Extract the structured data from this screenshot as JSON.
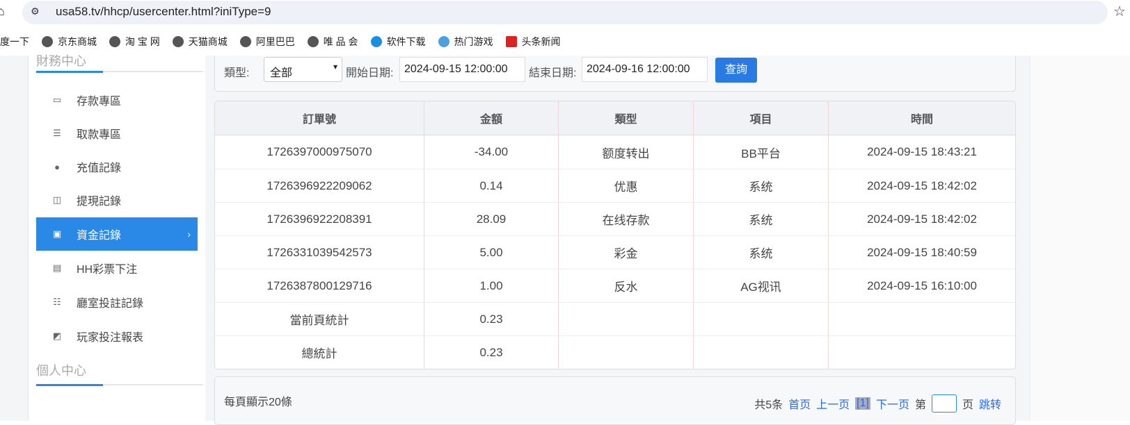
{
  "browser": {
    "url": "usa58.tv/hhcp/usercenter.html?iniType=9",
    "bookmarks": [
      "百度一下",
      "京东商城",
      "淘 宝 网",
      "天猫商城",
      "阿里巴巴",
      "唯 品 会",
      "软件下载",
      "热门游戏",
      "头条新闻"
    ]
  },
  "sidebar": {
    "section1": "財務中心",
    "section2": "個人中心",
    "active_color": "#2a88e6",
    "items": [
      {
        "label": "存款專區",
        "icon": "card-icon"
      },
      {
        "label": "取款專區",
        "icon": "hand-money-icon"
      },
      {
        "label": "充值記錄",
        "icon": "money-bag-icon"
      },
      {
        "label": "提現記錄",
        "icon": "wallet-icon"
      },
      {
        "label": "資金記錄",
        "icon": "cash-icon",
        "active": true
      },
      {
        "label": "HH彩票下注",
        "icon": "list-icon"
      },
      {
        "label": "廳室投註記錄",
        "icon": "bullet-list-icon"
      },
      {
        "label": "玩家投注報表",
        "icon": "chart-icon"
      }
    ]
  },
  "filter": {
    "type_label": "類型:",
    "type_value": "全部",
    "start_label": "開始日期:",
    "start_value": "2024-09-15 12:00:00",
    "end_label": "結束日期:",
    "end_value": "2024-09-16 12:00:00",
    "query_button": "查詢"
  },
  "table": {
    "headers": [
      "訂單號",
      "金額",
      "類型",
      "項目",
      "時間"
    ],
    "rows": [
      [
        "1726397000975070",
        "-34.00",
        "额度转出",
        "BB平台",
        "2024-09-15 18:43:21"
      ],
      [
        "1726396922209062",
        "0.14",
        "优惠",
        "系统",
        "2024-09-15 18:42:02"
      ],
      [
        "1726396922208391",
        "28.09",
        "在线存款",
        "系统",
        "2024-09-15 18:42:02"
      ],
      [
        "1726331039542573",
        "5.00",
        "彩金",
        "系统",
        "2024-09-15 18:40:59"
      ],
      [
        "1726387800129716",
        "1.00",
        "反水",
        "AG视讯",
        "2024-09-15 16:10:00"
      ]
    ],
    "page_total_label": "當前頁統計",
    "page_total": "0.23",
    "grand_total_label": "總統計",
    "grand_total": "0.23"
  },
  "pager": {
    "per_page": "每頁顯示20條",
    "total": "共5条",
    "first": "首页",
    "prev": "上一页",
    "current": "[1]",
    "next": "下一页",
    "page_prefix": "第",
    "page_suffix": "页",
    "jump": "跳转"
  }
}
